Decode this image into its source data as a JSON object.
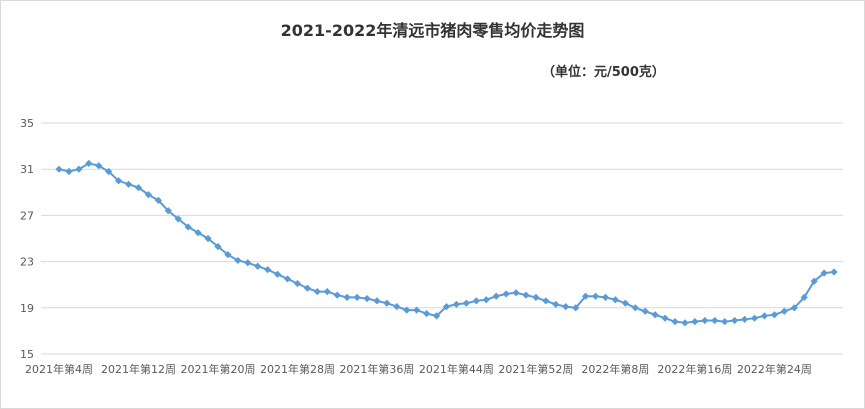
{
  "chart_data": {
    "type": "line",
    "title": "2021-2022年清远市猪肉零售均价走势图",
    "subtitle": "（单位：元/500克）",
    "xlabel": "",
    "ylabel": "",
    "ylim": [
      15,
      35
    ],
    "yticks": [
      15,
      19,
      23,
      27,
      31,
      35
    ],
    "grid": "horizontal",
    "legend": "none",
    "colors": {
      "line": "#5b9bd5",
      "marker": "#5b9bd5",
      "grid": "#d9d9d9"
    },
    "x_tick_labels": [
      {
        "index": 0,
        "label": "2021年第4周"
      },
      {
        "index": 8,
        "label": "2021年第12周"
      },
      {
        "index": 16,
        "label": "2021年第20周"
      },
      {
        "index": 24,
        "label": "2021年第28周"
      },
      {
        "index": 32,
        "label": "2021年第36周"
      },
      {
        "index": 40,
        "label": "2021年第44周"
      },
      {
        "index": 48,
        "label": "2021年第52周"
      },
      {
        "index": 56,
        "label": "2022年第8周"
      },
      {
        "index": 64,
        "label": "2022年第16周"
      },
      {
        "index": 72,
        "label": "2022年第24周"
      }
    ],
    "series": [
      {
        "values": [
          31.0,
          30.8,
          31.0,
          31.5,
          31.3,
          30.8,
          30.0,
          29.7,
          29.4,
          28.8,
          28.3,
          27.4,
          26.7,
          26.0,
          25.5,
          25.0,
          24.3,
          23.6,
          23.1,
          22.9,
          22.6,
          22.3,
          21.9,
          21.5,
          21.1,
          20.7,
          20.4,
          20.4,
          20.1,
          19.9,
          19.9,
          19.8,
          19.6,
          19.4,
          19.1,
          18.8,
          18.8,
          18.5,
          18.3,
          19.1,
          19.3,
          19.4,
          19.6,
          19.7,
          20.0,
          20.2,
          20.3,
          20.1,
          19.9,
          19.6,
          19.3,
          19.1,
          19.0,
          20.0,
          20.0,
          19.9,
          19.7,
          19.4,
          19.0,
          18.7,
          18.4,
          18.1,
          17.8,
          17.7,
          17.8,
          17.9,
          17.9,
          17.8,
          17.9,
          18.0,
          18.1,
          18.3,
          18.4,
          18.7,
          19.0,
          19.9,
          21.3,
          22.0,
          22.1
        ]
      }
    ]
  }
}
